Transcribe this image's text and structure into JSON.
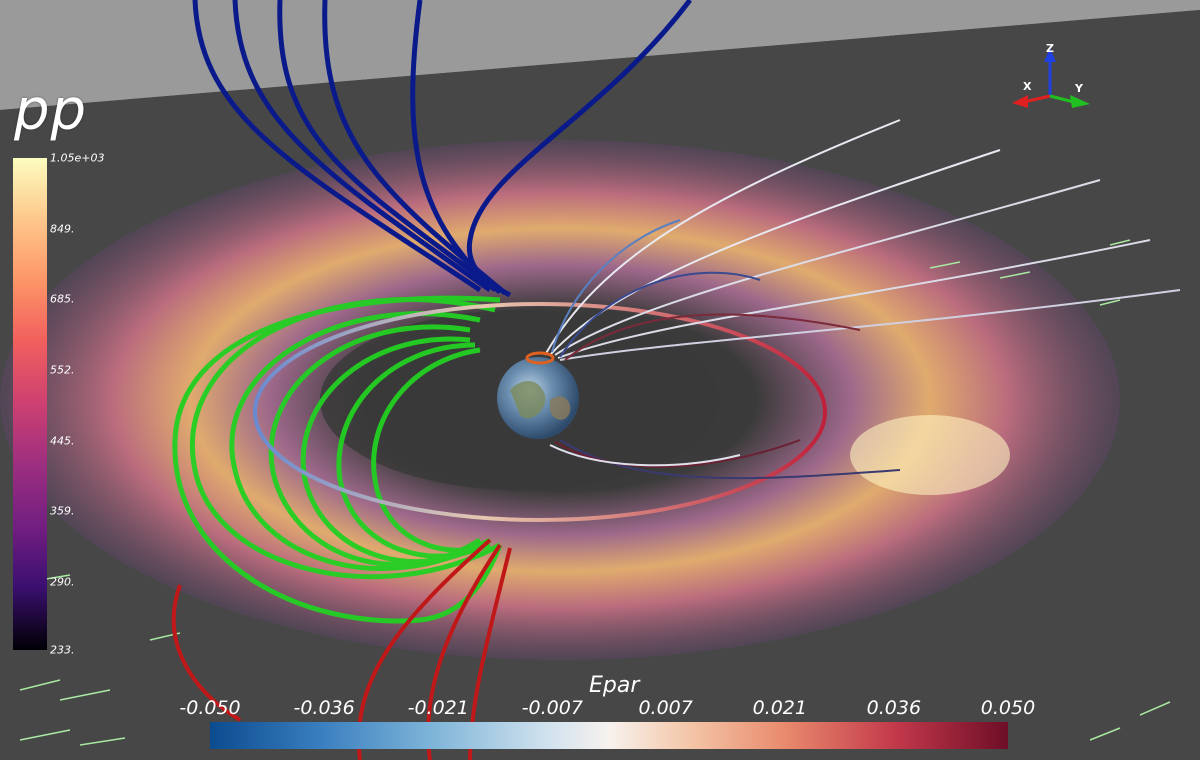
{
  "scene": {
    "earth_icon": "earth-globe-icon"
  },
  "pp_legend": {
    "title": "pp",
    "ticks": [
      {
        "label": "1.05e+03",
        "fraction": 1.0
      },
      {
        "label": "849.",
        "fraction": 0.856
      },
      {
        "label": "685.",
        "fraction": 0.713
      },
      {
        "label": "552.",
        "fraction": 0.569
      },
      {
        "label": "445.",
        "fraction": 0.425
      },
      {
        "label": "359.",
        "fraction": 0.282
      },
      {
        "label": "290.",
        "fraction": 0.138
      },
      {
        "label": "233.",
        "fraction": 0.0
      }
    ]
  },
  "epar_legend": {
    "title": "Epar",
    "ticks": [
      {
        "label": "-0.050",
        "fraction": 0.0
      },
      {
        "label": "-0.036",
        "fraction": 0.143
      },
      {
        "label": "-0.021",
        "fraction": 0.286
      },
      {
        "label": "-0.007",
        "fraction": 0.429
      },
      {
        "label": "0.007",
        "fraction": 0.571
      },
      {
        "label": "0.021",
        "fraction": 0.714
      },
      {
        "label": "0.036",
        "fraction": 0.857
      },
      {
        "label": "0.050",
        "fraction": 1.0
      }
    ]
  },
  "orientation_axes": {
    "x_label": "X",
    "y_label": "Y",
    "z_label": "Z",
    "x_color": "#e02020",
    "y_color": "#20c020",
    "z_color": "#2040e0"
  },
  "colors": {
    "background": "#4a4a4a",
    "field_lines_north": "#0a1a8a",
    "field_lines_closed": "#22d022",
    "field_lines_south": "#c01818"
  }
}
